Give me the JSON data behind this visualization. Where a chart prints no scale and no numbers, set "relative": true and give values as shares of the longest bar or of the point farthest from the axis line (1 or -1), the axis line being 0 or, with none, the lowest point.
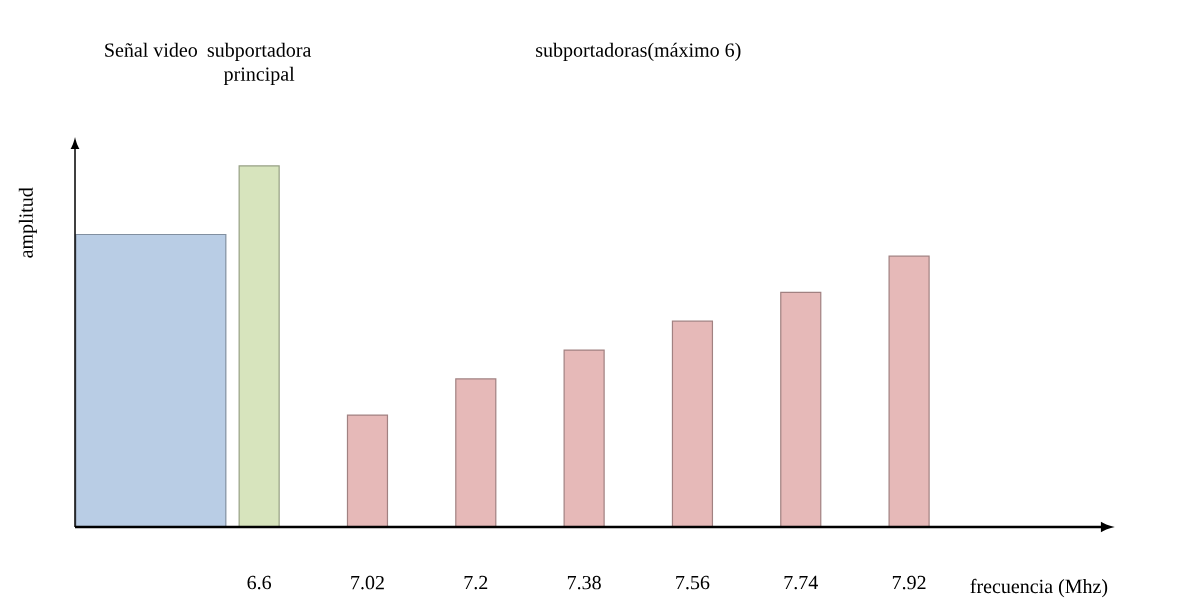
{
  "chart_data": {
    "type": "bar",
    "relative": true,
    "categories": [
      null,
      "6.6",
      "7.02",
      "7.2",
      "7.38",
      "7.56",
      "7.74",
      "7.92"
    ],
    "values": [
      0.81,
      1,
      0.31,
      0.41,
      0.49,
      0.57,
      0.65,
      0.75
    ],
    "colors": [
      "#b9cde5",
      "#d7e4bd",
      "#e6b9b8",
      "#e6b9b8",
      "#e6b9b8",
      "#e6b9b8",
      "#e6b9b8",
      "#e6b9b8"
    ],
    "xlabel": "frecuencia (Mhz)",
    "ylabel": "amplitud",
    "annotations": [
      "Señal video",
      "subportadora principal",
      "subportadoras(máximo 6)"
    ]
  }
}
